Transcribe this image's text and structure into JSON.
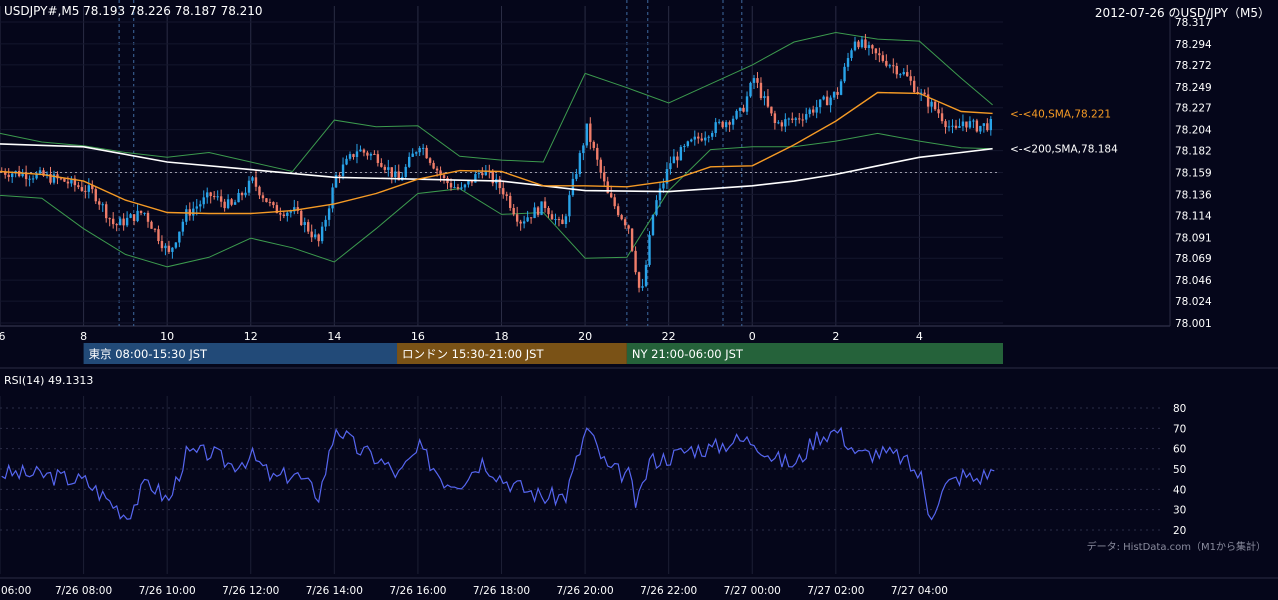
{
  "header": {
    "symbol_ohlc": "USDJPY#,M5 78.193 78.226 78.187 78.210",
    "chart_title": "2012-07-26 のUSD/JPY（M5）"
  },
  "colors": {
    "background": "#05061a",
    "bull": "#29a3e8",
    "bear": "#f07d6a",
    "sma40": "#f59a25",
    "sma200": "#ffffff",
    "bollinger": "#3c9a4e",
    "rsi": "#5666f0",
    "tokyo": "#224a78",
    "london": "#7a5216",
    "ny": "#25623a"
  },
  "chart_data": [
    {
      "type": "candlestick",
      "title": "USDJPY#,M5",
      "ylim": [
        78.001,
        78.317
      ],
      "y_ticks": [
        "78.317",
        "78.294",
        "78.272",
        "78.249",
        "78.227",
        "78.204",
        "78.182",
        "78.159",
        "78.136",
        "78.114",
        "78.091",
        "78.069",
        "78.046",
        "78.024",
        "78.001"
      ],
      "x_hour_ticks": [
        "6",
        "8",
        "10",
        "12",
        "14",
        "16",
        "18",
        "20",
        "22",
        "0",
        "2",
        "4"
      ],
      "reference_price": 78.159,
      "series": [
        {
          "name": "40,SMA",
          "label": "<-<40,SMA,78.221",
          "last": 78.221,
          "points": [
            [
              6,
              78.16
            ],
            [
              7,
              78.157
            ],
            [
              8,
              78.15
            ],
            [
              9,
              78.13
            ],
            [
              10,
              78.117
            ],
            [
              11,
              78.116
            ],
            [
              12,
              78.116
            ],
            [
              13,
              78.119
            ],
            [
              14,
              78.126
            ],
            [
              15,
              78.137
            ],
            [
              16,
              78.152
            ],
            [
              17,
              78.161
            ],
            [
              18,
              78.16
            ],
            [
              19,
              78.145
            ],
            [
              20,
              78.145
            ],
            [
              21,
              78.144
            ],
            [
              22,
              78.15
            ],
            [
              23,
              78.165
            ],
            [
              24,
              78.166
            ],
            [
              25,
              78.188
            ],
            [
              26,
              78.213
            ],
            [
              27,
              78.243
            ],
            [
              28,
              78.242
            ],
            [
              29,
              78.223
            ],
            [
              29.75,
              78.221
            ]
          ]
        },
        {
          "name": "200,SMA",
          "label": "<-<200,SMA,78.184",
          "last": 78.184,
          "points": [
            [
              6,
              78.189
            ],
            [
              8,
              78.186
            ],
            [
              10,
              78.17
            ],
            [
              12,
              78.162
            ],
            [
              14,
              78.154
            ],
            [
              16,
              78.152
            ],
            [
              18,
              78.15
            ],
            [
              20,
              78.14
            ],
            [
              22,
              78.139
            ],
            [
              24,
              78.145
            ],
            [
              25,
              78.15
            ],
            [
              26,
              78.157
            ],
            [
              27,
              78.166
            ],
            [
              28,
              78.175
            ],
            [
              29,
              78.18
            ],
            [
              29.75,
              78.184
            ]
          ]
        }
      ],
      "bollinger_upper": [
        [
          6,
          78.2
        ],
        [
          7,
          78.191
        ],
        [
          8,
          78.187
        ],
        [
          9,
          78.18
        ],
        [
          10,
          78.175
        ],
        [
          11,
          78.18
        ],
        [
          12,
          78.17
        ],
        [
          13,
          78.16
        ],
        [
          14,
          78.214
        ],
        [
          15,
          78.207
        ],
        [
          16,
          78.208
        ],
        [
          17,
          78.176
        ],
        [
          18,
          78.172
        ],
        [
          19,
          78.17
        ],
        [
          20,
          78.263
        ],
        [
          21,
          78.248
        ],
        [
          22,
          78.232
        ],
        [
          23,
          78.252
        ],
        [
          24,
          78.272
        ],
        [
          25,
          78.296
        ],
        [
          26,
          78.306
        ],
        [
          27,
          78.299
        ],
        [
          28,
          78.297
        ],
        [
          29,
          78.258
        ],
        [
          29.75,
          78.23
        ]
      ],
      "bollinger_lower": [
        [
          6,
          78.135
        ],
        [
          7,
          78.132
        ],
        [
          8,
          78.1
        ],
        [
          9,
          78.073
        ],
        [
          10,
          78.06
        ],
        [
          11,
          78.07
        ],
        [
          12,
          78.09
        ],
        [
          13,
          78.08
        ],
        [
          14,
          78.065
        ],
        [
          15,
          78.1
        ],
        [
          16,
          78.137
        ],
        [
          17,
          78.142
        ],
        [
          18,
          78.115
        ],
        [
          19,
          78.117
        ],
        [
          20,
          78.069
        ],
        [
          21,
          78.07
        ],
        [
          22,
          78.14
        ],
        [
          23,
          78.183
        ],
        [
          24,
          78.186
        ],
        [
          25,
          78.186
        ],
        [
          26,
          78.192
        ],
        [
          27,
          78.2
        ],
        [
          28,
          78.192
        ],
        [
          29,
          78.185
        ],
        [
          29.75,
          78.184
        ]
      ],
      "candle_path": [
        [
          6,
          78.16
        ],
        [
          6.5,
          78.158
        ],
        [
          7,
          78.155
        ],
        [
          7.5,
          78.15
        ],
        [
          8.2,
          78.138
        ],
        [
          8.7,
          78.103
        ],
        [
          9.4,
          78.118
        ],
        [
          10,
          78.073
        ],
        [
          10.4,
          78.115
        ],
        [
          11,
          78.135
        ],
        [
          11.5,
          78.123
        ],
        [
          12,
          78.15
        ],
        [
          12.5,
          78.12
        ],
        [
          13,
          78.118
        ],
        [
          13.6,
          78.085
        ],
        [
          14,
          78.155
        ],
        [
          14.5,
          78.183
        ],
        [
          15,
          78.175
        ],
        [
          15.5,
          78.15
        ],
        [
          16,
          78.19
        ],
        [
          16.6,
          78.15
        ],
        [
          17,
          78.14
        ],
        [
          17.5,
          78.162
        ],
        [
          18,
          78.14
        ],
        [
          18.4,
          78.108
        ],
        [
          19,
          78.125
        ],
        [
          19.4,
          78.1
        ],
        [
          20,
          78.205
        ],
        [
          20.5,
          78.135
        ],
        [
          21,
          78.102
        ],
        [
          21.3,
          78.025
        ],
        [
          21.6,
          78.12
        ],
        [
          22,
          78.17
        ],
        [
          22.5,
          78.19
        ],
        [
          23,
          78.205
        ],
        [
          23.7,
          78.222
        ],
        [
          24,
          78.258
        ],
        [
          24.5,
          78.21
        ],
        [
          25,
          78.215
        ],
        [
          25.5,
          78.228
        ],
        [
          26,
          78.243
        ],
        [
          26.4,
          78.3
        ],
        [
          26.8,
          78.285
        ],
        [
          27.2,
          78.275
        ],
        [
          27.6,
          78.262
        ],
        [
          28,
          78.24
        ],
        [
          28.4,
          78.223
        ],
        [
          28.8,
          78.2
        ],
        [
          29,
          78.213
        ],
        [
          29.3,
          78.207
        ],
        [
          29.75,
          78.21
        ]
      ]
    },
    {
      "type": "line",
      "title": "RSI(14) 49.1313",
      "ylim": [
        20,
        80
      ],
      "y_ticks": [
        "80",
        "70",
        "60",
        "50",
        "40",
        "30",
        "20"
      ],
      "series": [
        {
          "name": "RSI(14)",
          "last": 49.1313,
          "points": [
            [
              6,
              48
            ],
            [
              7,
              47
            ],
            [
              8,
              44
            ],
            [
              9,
              27
            ],
            [
              9.5,
              44
            ],
            [
              10,
              34
            ],
            [
              10.4,
              57
            ],
            [
              11,
              58
            ],
            [
              11.5,
              52
            ],
            [
              12,
              56
            ],
            [
              12.5,
              45
            ],
            [
              13,
              48
            ],
            [
              13.6,
              37
            ],
            [
              14,
              71
            ],
            [
              14.5,
              60
            ],
            [
              15,
              55
            ],
            [
              15.5,
              47
            ],
            [
              16,
              60
            ],
            [
              16.6,
              44
            ],
            [
              17,
              44
            ],
            [
              17.5,
              54
            ],
            [
              18,
              45
            ],
            [
              18.5,
              40
            ],
            [
              19,
              36
            ],
            [
              19.5,
              37
            ],
            [
              20,
              70
            ],
            [
              20.5,
              50
            ],
            [
              21,
              47
            ],
            [
              21.2,
              31
            ],
            [
              21.5,
              54
            ],
            [
              22,
              56
            ],
            [
              22.5,
              60
            ],
            [
              23,
              60
            ],
            [
              23.5,
              64
            ],
            [
              24,
              64
            ],
            [
              24.5,
              55
            ],
            [
              25,
              52
            ],
            [
              25.5,
              66
            ],
            [
              26,
              69
            ],
            [
              26.5,
              57
            ],
            [
              27,
              58
            ],
            [
              27.5,
              56
            ],
            [
              28,
              46
            ],
            [
              28.2,
              27
            ],
            [
              28.6,
              42
            ],
            [
              29,
              47
            ],
            [
              29.3,
              45
            ],
            [
              29.75,
              49.13
            ]
          ]
        }
      ]
    }
  ],
  "sessions": [
    {
      "label": "東京 08:00-15:30 JST"
    },
    {
      "label": "ロンドン 15:30-21:00 JST"
    },
    {
      "label": "NY 21:00-06:00 JST"
    }
  ],
  "bottom_axis": [
    "06:00",
    "7/26 08:00",
    "7/26 10:00",
    "7/26 12:00",
    "7/26 14:00",
    "7/26 16:00",
    "7/26 18:00",
    "7/26 20:00",
    "7/26 22:00",
    "7/27 00:00",
    "7/27 02:00",
    "7/27 04:00"
  ],
  "source_credit": "データ: HistData.com（M1から集計）"
}
